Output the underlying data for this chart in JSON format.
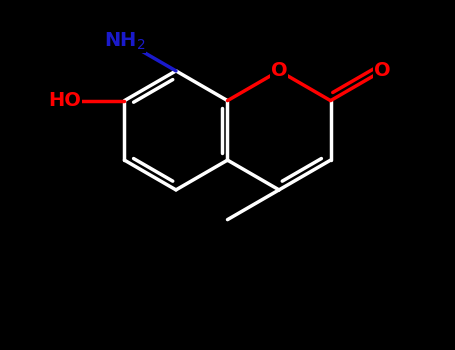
{
  "figsize": [
    4.55,
    3.5
  ],
  "dpi": 100,
  "bg_color": "#000000",
  "bond_color": "#ffffff",
  "O_color": "#ff0000",
  "N_color": "#1a1acc",
  "bond_lw": 2.5,
  "dbo": 0.1,
  "font_size": 14,
  "font_size_sub": 11,
  "xlim": [
    -3.8,
    3.8
  ],
  "ylim": [
    -3.0,
    2.5
  ]
}
